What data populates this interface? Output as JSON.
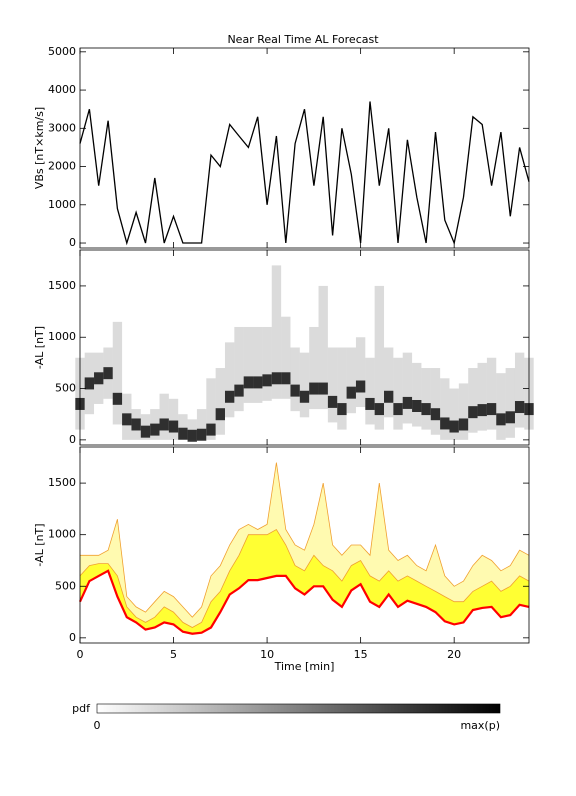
{
  "title": "Near Real Time AL Forecast",
  "chart_data": [
    {
      "type": "line",
      "ylabel": "VBs [nT×km/s]",
      "color": "#000000",
      "x": [
        0,
        0.5,
        1,
        1.5,
        2,
        2.5,
        3,
        3.5,
        4,
        4.5,
        5,
        5.5,
        6,
        6.5,
        7,
        7.5,
        8,
        8.5,
        9,
        9.5,
        10,
        10.5,
        11,
        11.5,
        12,
        12.5,
        13,
        13.5,
        14,
        14.5,
        15,
        15.5,
        16,
        16.5,
        17,
        17.5,
        18,
        18.5,
        19,
        19.5,
        20,
        20.5,
        21,
        21.5,
        22,
        22.5,
        23,
        23.5,
        24
      ],
      "values": [
        2600,
        3500,
        1500,
        3200,
        900,
        0,
        800,
        0,
        1700,
        0,
        700,
        0,
        0,
        0,
        2300,
        2000,
        3100,
        2800,
        2500,
        3300,
        1000,
        2800,
        0,
        2600,
        3500,
        1500,
        3300,
        200,
        3000,
        1800,
        0,
        3700,
        1500,
        3000,
        0,
        2700,
        1200,
        0,
        2900,
        600,
        0,
        1200,
        3300,
        3100,
        1500,
        2900,
        700,
        2500,
        1600
      ],
      "xlim": [
        0,
        24
      ],
      "xticks": [
        0,
        5,
        10,
        15,
        20
      ],
      "ylim": [
        -130,
        5100
      ],
      "yticks": [
        0,
        1000,
        2000,
        3000,
        4000,
        5000
      ]
    },
    {
      "type": "heatmap",
      "ylabel": "-AL [nT]",
      "x": [
        0,
        0.5,
        1,
        1.5,
        2,
        2.5,
        3,
        3.5,
        4,
        4.5,
        5,
        5.5,
        6,
        6.5,
        7,
        7.5,
        8,
        8.5,
        9,
        9.5,
        10,
        10.5,
        11,
        11.5,
        12,
        12.5,
        13,
        13.5,
        14,
        14.5,
        15,
        15.5,
        16,
        16.5,
        17,
        17.5,
        18,
        18.5,
        19,
        19.5,
        20,
        20.5,
        21,
        21.5,
        22,
        22.5,
        23,
        23.5,
        24
      ],
      "values": [
        350,
        550,
        600,
        650,
        400,
        200,
        150,
        80,
        100,
        150,
        130,
        60,
        40,
        50,
        100,
        250,
        420,
        480,
        560,
        560,
        580,
        600,
        600,
        480,
        420,
        500,
        500,
        370,
        300,
        460,
        520,
        350,
        300,
        420,
        300,
        360,
        330,
        300,
        250,
        160,
        130,
        150,
        270,
        290,
        300,
        200,
        220,
        320,
        300
      ],
      "low": [
        100,
        250,
        350,
        400,
        150,
        0,
        0,
        0,
        0,
        0,
        0,
        0,
        0,
        0,
        0,
        50,
        220,
        280,
        360,
        360,
        380,
        400,
        400,
        280,
        220,
        300,
        300,
        170,
        100,
        260,
        320,
        150,
        100,
        220,
        100,
        160,
        130,
        100,
        50,
        0,
        0,
        0,
        70,
        90,
        100,
        0,
        20,
        120,
        100
      ],
      "high": [
        800,
        850,
        850,
        900,
        1150,
        450,
        300,
        250,
        300,
        450,
        400,
        250,
        200,
        300,
        600,
        700,
        950,
        1100,
        1100,
        1100,
        1100,
        1700,
        1200,
        900,
        850,
        1100,
        1500,
        900,
        900,
        900,
        1000,
        800,
        1500,
        900,
        800,
        850,
        750,
        700,
        700,
        600,
        500,
        550,
        700,
        750,
        800,
        650,
        700,
        850,
        800
      ],
      "xlim": [
        0,
        24
      ],
      "xticks": [
        0,
        5,
        10,
        15,
        20
      ],
      "ylim": [
        -50,
        1850
      ],
      "yticks": [
        0,
        500,
        1000,
        1500
      ]
    },
    {
      "type": "band",
      "ylabel": "-AL [nT]",
      "xlabel": "Time [min]",
      "x": [
        0,
        0.5,
        1,
        1.5,
        2,
        2.5,
        3,
        3.5,
        4,
        4.5,
        5,
        5.5,
        6,
        6.5,
        7,
        7.5,
        8,
        8.5,
        9,
        9.5,
        10,
        10.5,
        11,
        11.5,
        12,
        12.5,
        13,
        13.5,
        14,
        14.5,
        15,
        15.5,
        16,
        16.5,
        17,
        17.5,
        18,
        18.5,
        19,
        19.5,
        20,
        20.5,
        21,
        21.5,
        22,
        22.5,
        23,
        23.5,
        24
      ],
      "values": [
        350,
        550,
        600,
        650,
        400,
        200,
        150,
        80,
        100,
        150,
        130,
        60,
        40,
        50,
        100,
        250,
        420,
        480,
        560,
        560,
        580,
        600,
        600,
        480,
        420,
        500,
        500,
        370,
        300,
        460,
        520,
        350,
        300,
        420,
        300,
        360,
        330,
        300,
        250,
        160,
        130,
        150,
        270,
        290,
        300,
        200,
        220,
        320,
        300
      ],
      "q_high": [
        600,
        700,
        720,
        720,
        600,
        300,
        200,
        150,
        200,
        300,
        250,
        150,
        100,
        150,
        350,
        450,
        650,
        800,
        1000,
        1000,
        1000,
        1050,
        900,
        700,
        650,
        800,
        700,
        650,
        550,
        700,
        750,
        600,
        550,
        650,
        550,
        600,
        550,
        500,
        450,
        400,
        350,
        350,
        450,
        500,
        550,
        450,
        500,
        600,
        550
      ],
      "max": [
        800,
        800,
        800,
        850,
        1150,
        400,
        300,
        250,
        350,
        450,
        400,
        300,
        200,
        300,
        600,
        700,
        900,
        1050,
        1100,
        1050,
        1100,
        1700,
        1050,
        900,
        850,
        1100,
        1500,
        900,
        800,
        900,
        900,
        800,
        1500,
        850,
        750,
        800,
        700,
        650,
        900,
        600,
        500,
        550,
        700,
        800,
        750,
        650,
        700,
        850,
        800
      ],
      "color": "#ff0000",
      "band_color": "#ffff33",
      "range_color": "#fffab0",
      "range_line_color": "#f0a030",
      "xlim": [
        0,
        24
      ],
      "xticks": [
        0,
        5,
        10,
        15,
        20
      ],
      "ylim": [
        -50,
        1850
      ],
      "yticks": [
        0,
        500,
        1000,
        1500
      ]
    }
  ],
  "colorbar": {
    "label": "pdf",
    "min_label": "0",
    "max_label": "max(p)"
  }
}
